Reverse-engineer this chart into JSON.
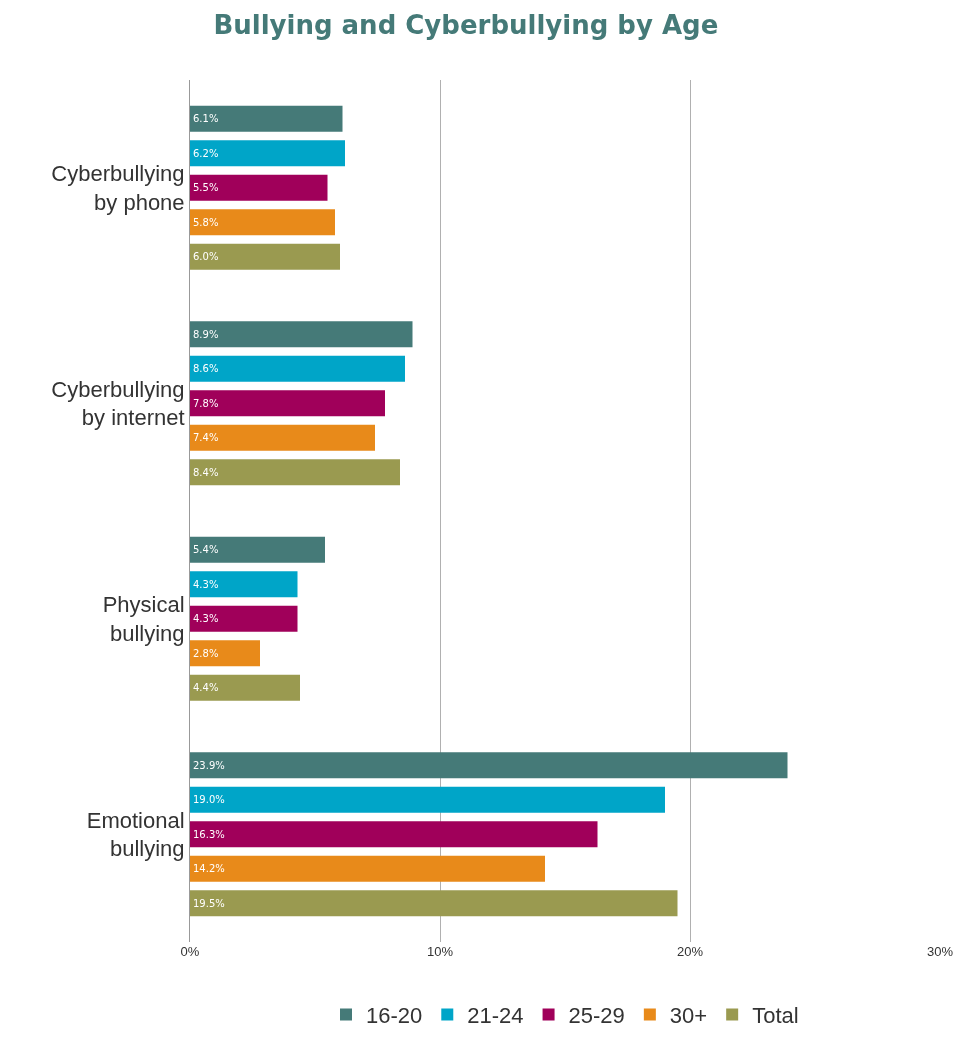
{
  "chart_data": {
    "type": "bar",
    "orientation": "horizontal",
    "title": "Bullying and Cyberbullying by Age",
    "categories": [
      "Cyberbullying by phone",
      "Cyberbullying by internet",
      "Physical bullying",
      "Emotional bullying"
    ],
    "series": [
      {
        "name": "16-20",
        "color": "#457a78",
        "values": [
          6.1,
          8.9,
          5.4,
          23.9
        ],
        "value_labels": [
          "6.1%",
          "8.9%",
          "5.4%",
          "23.9%"
        ]
      },
      {
        "name": "21-24",
        "color": "#00a5c8",
        "values": [
          6.2,
          8.6,
          4.3,
          19.0
        ],
        "value_labels": [
          "6.2%",
          "8.6%",
          "4.3%",
          "19.0%"
        ]
      },
      {
        "name": "25-29",
        "color": "#a0005a",
        "values": [
          5.5,
          7.8,
          4.3,
          16.3
        ],
        "value_labels": [
          "5.5%",
          "7.8%",
          "4.3%",
          "16.3%"
        ]
      },
      {
        "name": "30+",
        "color": "#e88a1a",
        "values": [
          5.8,
          7.4,
          2.8,
          14.2
        ],
        "value_labels": [
          "5.8%",
          "7.4%",
          "2.8%",
          "14.2%"
        ]
      },
      {
        "name": "Total",
        "color": "#9a9a50",
        "values": [
          6.0,
          8.4,
          4.4,
          19.5
        ],
        "value_labels": [
          "6.0%",
          "8.4%",
          "4.4%",
          "19.5%"
        ]
      }
    ],
    "xlim": [
      0,
      30
    ],
    "xticks": [
      {
        "value": 0,
        "label": "0%"
      },
      {
        "value": 10,
        "label": "10%"
      },
      {
        "value": 20,
        "label": "20%"
      },
      {
        "value": 30,
        "label": "30%"
      }
    ],
    "grid": "x",
    "legend": "bottom"
  }
}
